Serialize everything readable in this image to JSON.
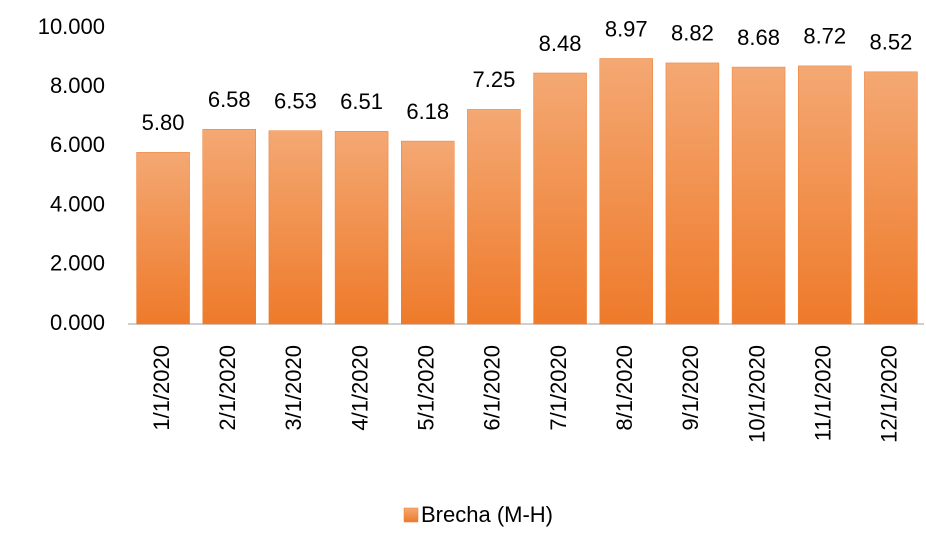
{
  "chart_data": {
    "type": "bar",
    "categories": [
      "1/1/2020",
      "2/1/2020",
      "3/1/2020",
      "4/1/2020",
      "5/1/2020",
      "6/1/2020",
      "7/1/2020",
      "8/1/2020",
      "9/1/2020",
      "10/1/2020",
      "11/1/2020",
      "12/1/2020"
    ],
    "series": [
      {
        "name": "Brecha (M-H)",
        "color": "#ed7d31",
        "values": [
          5.8,
          6.58,
          6.53,
          6.51,
          6.18,
          7.25,
          8.48,
          8.97,
          8.82,
          8.68,
          8.72,
          8.52
        ],
        "value_labels": [
          "5.80",
          "6.58",
          "6.53",
          "6.51",
          "6.18",
          "7.25",
          "8.48",
          "8.97",
          "8.82",
          "8.68",
          "8.72",
          "8.52"
        ]
      }
    ],
    "ylim": [
      0,
      10
    ],
    "yticks": [
      {
        "value": 0,
        "label": "0.000"
      },
      {
        "value": 2,
        "label": "2.000"
      },
      {
        "value": 4,
        "label": "4.000"
      },
      {
        "value": 6,
        "label": "6.000"
      },
      {
        "value": 8,
        "label": "8.000"
      },
      {
        "value": 10,
        "label": "10.000"
      }
    ],
    "grid": false,
    "legend": "bottom"
  }
}
